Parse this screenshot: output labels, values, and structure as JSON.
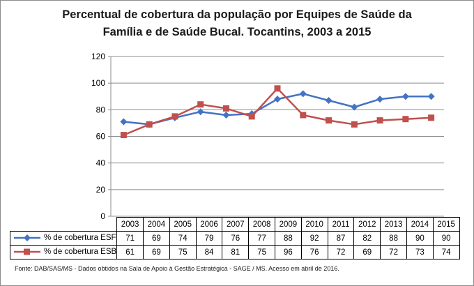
{
  "chart_data": {
    "type": "line",
    "title": "Percentual de cobertura da população por Equipes de Saúde da Família e de Saúde Bucal. Tocantins, 2003 a 2015",
    "title_lines": [
      "Percentual de cobertura da população por Equipes de Saúde da",
      "Família e de Saúde Bucal. Tocantins, 2003 a 2015"
    ],
    "categories": [
      "2003",
      "2004",
      "2005",
      "2006",
      "2007",
      "2008",
      "2009",
      "2010",
      "2011",
      "2012",
      "2013",
      "2014",
      "2015"
    ],
    "series": [
      {
        "name": "% de cobertura ESF",
        "color": "#4472c4",
        "marker": "diamond",
        "values": [
          71,
          69,
          74,
          79,
          76,
          77,
          88,
          92,
          87,
          82,
          88,
          90,
          90
        ],
        "plotted": [
          71,
          69,
          74,
          78.5,
          76,
          77,
          88,
          92,
          87,
          82,
          88,
          90,
          90
        ]
      },
      {
        "name": "% de cobertura ESB",
        "color": "#c0504d",
        "marker": "square",
        "values": [
          61,
          69,
          75,
          84,
          81,
          75,
          96,
          76,
          72,
          69,
          72,
          73,
          74
        ],
        "plotted": [
          61,
          69,
          75,
          84,
          81,
          75,
          96,
          76,
          72,
          69,
          72,
          73,
          74
        ]
      }
    ],
    "ylim": [
      0,
      120
    ],
    "yticks": [
      0,
      20,
      40,
      60,
      80,
      100,
      120
    ],
    "grid": true,
    "legend": "data-table",
    "xlabel": "",
    "ylabel": ""
  },
  "source_note": "Fonte:  DAB/SAS/MS - Dados obtidos na Sala de Apoio à Gestão Estratégica - SAGE / MS. Acesso em abril de 2016."
}
